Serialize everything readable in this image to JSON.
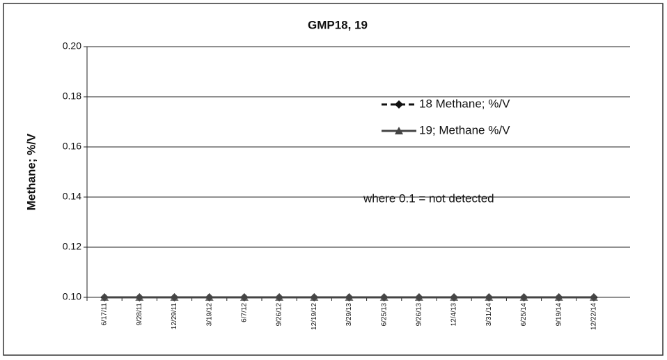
{
  "chart_data": {
    "type": "line",
    "title": "GMP18, 19",
    "ylabel": "Methane; %/V",
    "annotation": "where 0.1 = not detected",
    "categories": [
      "6/17/11",
      "9/28/11",
      "12/29/11",
      "3/19/12",
      "6/7/12",
      "9/26/12",
      "12/19/12",
      "3/29/13",
      "6/25/13",
      "9/26/13",
      "12/4/13",
      "3/31/14",
      "6/25/14",
      "9/19/14",
      "12/22/14"
    ],
    "series": [
      {
        "name": "18 Methane; %/V",
        "color": "#111111",
        "values": [
          0.1,
          0.1,
          0.1,
          0.1,
          0.1,
          0.1,
          0.1,
          0.1,
          0.1,
          0.1,
          0.1,
          0.1,
          0.1,
          0.1,
          0.1
        ]
      },
      {
        "name": "19; Methane %/V",
        "color": "#444444",
        "values": [
          0.1,
          0.1,
          0.1,
          0.1,
          0.1,
          0.1,
          0.1,
          0.1,
          0.1,
          0.1,
          0.1,
          0.1,
          0.1,
          0.1,
          0.1
        ]
      }
    ],
    "ylim": [
      0.1,
      0.2
    ],
    "yticks": [
      {
        "value": 0.1,
        "label": "0.10"
      },
      0.12,
      0.14,
      0.16,
      0.18,
      {
        "value": 0.2,
        "label": "0.20"
      }
    ],
    "grid": true
  }
}
